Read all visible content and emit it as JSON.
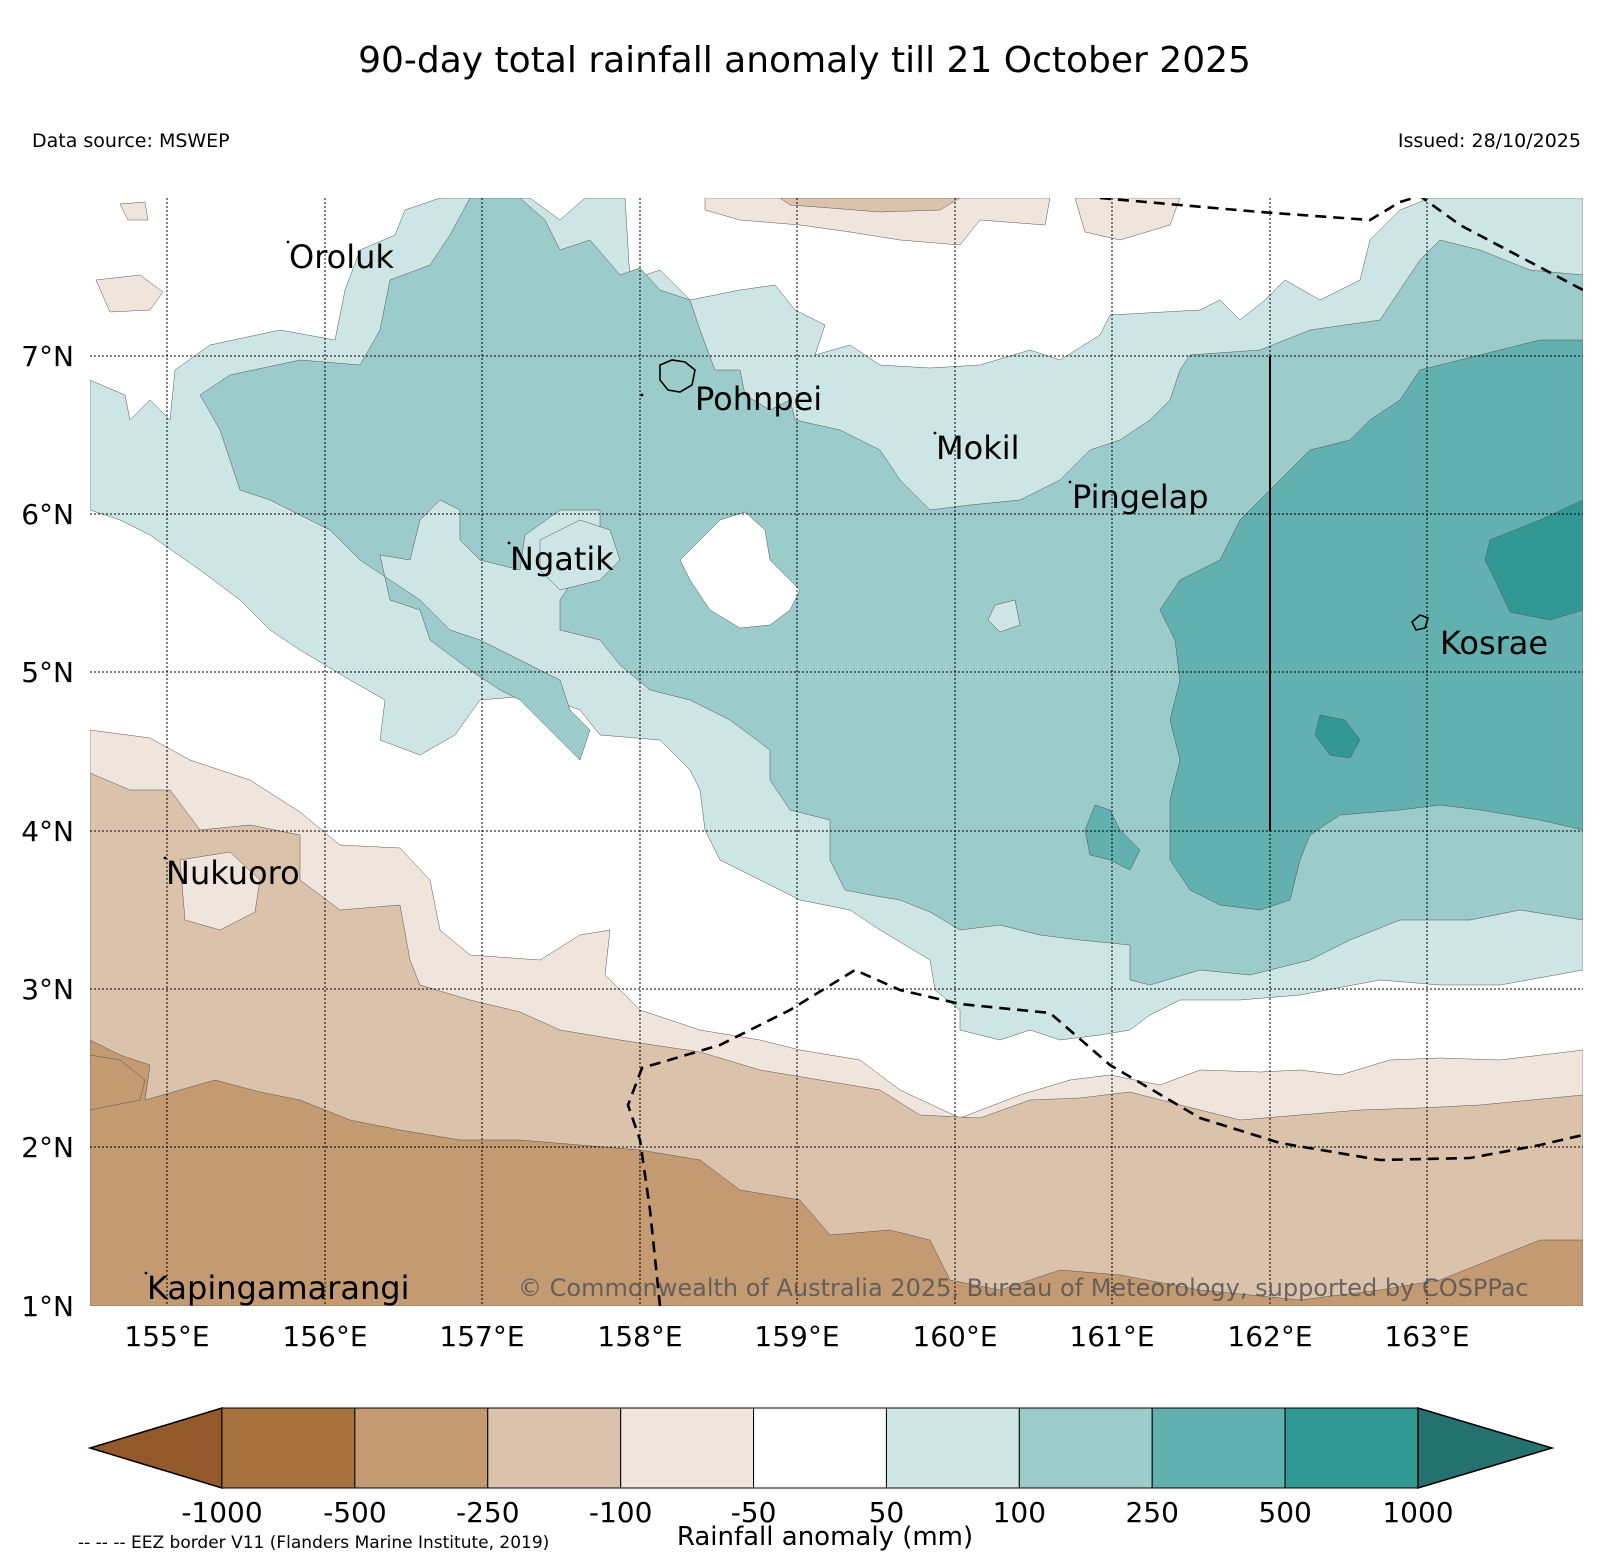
{
  "title": "90-day total rainfall anomaly till 21 October 2025",
  "data_source": "Data source: MSWEP",
  "issued": "Issued: 28/10/2025",
  "copyright": "© Commonwealth of Australia 2025, Bureau of Meteorology, supported by COSPPac",
  "eez_note": "-- -- -- EEZ border V11 (Flanders Marine Institute, 2019)",
  "colorbar": {
    "label": "Rainfall anomaly (mm)",
    "ticks": [
      "-1000",
      "-500",
      "-250",
      "-100",
      "-50",
      "50",
      "100",
      "250",
      "500",
      "1000"
    ],
    "colors": [
      "#94592a",
      "#a9733f",
      "#c39a72",
      "#dbc3ab",
      "#f0e5dc",
      "#ffffff",
      "#cde5e4",
      "#9bcbcb",
      "#62b0b0",
      "#319894",
      "#24726f"
    ]
  },
  "map": {
    "lon_range": [
      154.5,
      164.0
    ],
    "lat_range": [
      1.0,
      8.0
    ],
    "lon_ticks": [
      "155°E",
      "156°E",
      "157°E",
      "158°E",
      "159°E",
      "160°E",
      "161°E",
      "162°E",
      "163°E"
    ],
    "lat_ticks": [
      "1°N",
      "2°N",
      "3°N",
      "4°N",
      "5°N",
      "6°N",
      "7°N"
    ],
    "places": [
      {
        "name": "Oroluk",
        "lon": 155.75,
        "lat": 7.7
      },
      {
        "name": "Pohnpei",
        "lon": 158.3,
        "lat": 6.85
      },
      {
        "name": "Mokil",
        "lon": 159.8,
        "lat": 6.55
      },
      {
        "name": "Pingelap",
        "lon": 160.7,
        "lat": 6.2
      },
      {
        "name": "Ngatik",
        "lon": 157.15,
        "lat": 5.8
      },
      {
        "name": "Kosrae",
        "lon": 163.0,
        "lat": 5.3
      },
      {
        "name": "Nukuoro",
        "lon": 154.95,
        "lat": 3.85
      },
      {
        "name": "Kapingamarangi",
        "lon": 154.85,
        "lat": 1.2
      }
    ]
  }
}
